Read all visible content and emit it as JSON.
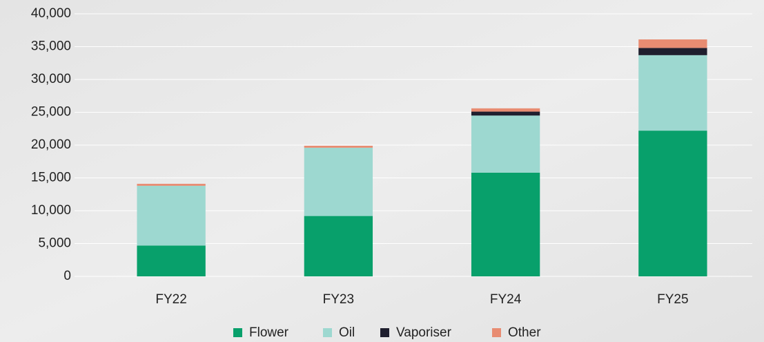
{
  "chart_data": {
    "type": "stacked_bar",
    "categories": [
      "FY22",
      "FY23",
      "FY24",
      "FY25"
    ],
    "series": [
      {
        "name": "Flower",
        "color": "#08a06b",
        "values": [
          4700,
          9200,
          15800,
          22200
        ]
      },
      {
        "name": "Oil",
        "color": "#9dd8d0",
        "values": [
          9100,
          10400,
          8700,
          11500
        ]
      },
      {
        "name": "Vaporiser",
        "color": "#1f1f2e",
        "values": [
          0,
          0,
          600,
          1100
        ]
      },
      {
        "name": "Other",
        "color": "#e88c72",
        "values": [
          300,
          300,
          500,
          1300
        ]
      }
    ],
    "ylim": [
      0,
      40000
    ],
    "yticks": [
      0,
      {
        "value": 5000,
        "label": "5,000"
      },
      {
        "value": 10000,
        "label": "10,000"
      },
      {
        "value": 15000,
        "label": "15,000"
      },
      {
        "value": 20000,
        "label": "20,000"
      },
      {
        "value": 25000,
        "label": "25,000"
      },
      {
        "value": 30000,
        "label": "30,000"
      },
      {
        "value": 35000,
        "label": "35,000"
      },
      {
        "value": 40000,
        "label": "40,000"
      }
    ],
    "grid": true,
    "legend": "bottom"
  }
}
